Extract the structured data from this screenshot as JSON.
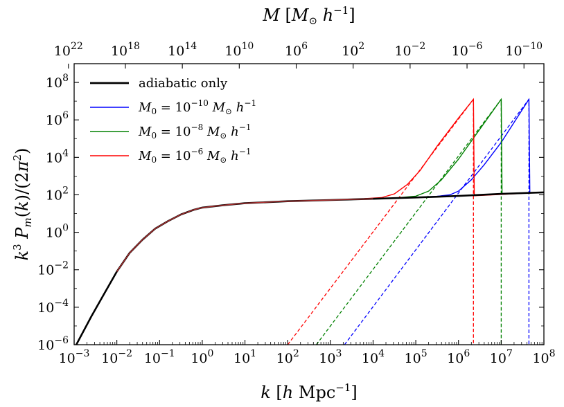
{
  "chart_data": {
    "type": "line",
    "scale": "log-log",
    "xlabel": "k [h Mpc^-1]",
    "ylabel": "k^3 P_m(k)/(2π^2)",
    "top_xlabel": "M [M_⊙ h^-1]",
    "xlim_log10": [
      -3,
      8
    ],
    "ylim_log10": [
      -6,
      9
    ],
    "x_tick_exponents": [
      -3,
      -2,
      -1,
      0,
      1,
      2,
      3,
      4,
      5,
      6,
      7,
      8
    ],
    "y_tick_exponents": [
      -6,
      -4,
      -2,
      0,
      2,
      4,
      6,
      8
    ],
    "top_tick_exponents": [
      22,
      18,
      14,
      10,
      6,
      2,
      -2,
      -6,
      -10
    ],
    "top_axis_relation": "log10 M = 12.6 - 3 * log10 k",
    "legend": {
      "location": "upper-left",
      "entries": [
        {
          "key": "adiabatic",
          "label": "adiabatic only",
          "color": "#000000"
        },
        {
          "key": "m10",
          "label": "M0 = 10^-10 M_⊙ h^-1",
          "color": "#0000ff"
        },
        {
          "key": "m8",
          "label": "M0 = 10^-8 M_⊙ h^-1",
          "color": "#008000"
        },
        {
          "key": "m6",
          "label": "M0 = 10^-6 M_⊙ h^-1",
          "color": "#ff0000"
        }
      ]
    },
    "adiabatic": {
      "name": "adiabatic only",
      "color": "#000000",
      "points_log10": [
        [
          -2.95,
          -6
        ],
        [
          -2.6,
          -4.5
        ],
        [
          -2.3,
          -3.3
        ],
        [
          -2,
          -2.1
        ],
        [
          -1.7,
          -1.1
        ],
        [
          -1.4,
          -0.4
        ],
        [
          -1.1,
          0.2
        ],
        [
          -0.8,
          0.6
        ],
        [
          -0.5,
          0.95
        ],
        [
          -0.2,
          1.2
        ],
        [
          0,
          1.32
        ],
        [
          0.5,
          1.45
        ],
        [
          1,
          1.55
        ],
        [
          2,
          1.66
        ],
        [
          3,
          1.72
        ],
        [
          4,
          1.79
        ],
        [
          5,
          1.86
        ],
        [
          6,
          1.94
        ],
        [
          7,
          2.05
        ],
        [
          8,
          2.13
        ]
      ]
    },
    "isocurvature": [
      {
        "name": "M0 = 10^-10",
        "color": "#0000ff",
        "cutoff_log10k": 7.65,
        "peak_log10y": 7.1,
        "dashed_points_log10": [
          [
            3.33,
            -6
          ],
          [
            7.65,
            7.1
          ]
        ],
        "total_points_log10": [
          [
            4,
            1.8
          ],
          [
            4.5,
            1.82
          ],
          [
            5,
            1.86
          ],
          [
            5.5,
            1.92
          ],
          [
            5.8,
            2.0
          ],
          [
            6,
            2.2
          ],
          [
            6.3,
            2.8
          ],
          [
            6.6,
            3.6
          ],
          [
            7,
            4.8
          ],
          [
            7.65,
            7.1
          ],
          [
            7.67,
            2.1
          ],
          [
            8,
            2.13
          ]
        ]
      },
      {
        "name": "M0 = 10^-8",
        "color": "#008000",
        "cutoff_log10k": 7.0,
        "peak_log10y": 7.1,
        "dashed_points_log10": [
          [
            2.67,
            -6
          ],
          [
            7.0,
            7.1
          ]
        ],
        "total_points_log10": [
          [
            4,
            1.8
          ],
          [
            4.5,
            1.83
          ],
          [
            5,
            1.93
          ],
          [
            5.3,
            2.2
          ],
          [
            5.6,
            2.8
          ],
          [
            6,
            3.9
          ],
          [
            6.5,
            5.5
          ],
          [
            7.0,
            7.1
          ],
          [
            7.02,
            2.05
          ],
          [
            8,
            2.13
          ]
        ]
      },
      {
        "name": "M0 = 10^-6",
        "color": "#ff0000",
        "cutoff_log10k": 6.35,
        "peak_log10y": 7.1,
        "dashed_points_log10": [
          [
            2.0,
            -6
          ],
          [
            6.35,
            7.1
          ]
        ],
        "total_points_log10": [
          [
            3.8,
            1.8
          ],
          [
            4.2,
            1.85
          ],
          [
            4.5,
            2.05
          ],
          [
            4.8,
            2.55
          ],
          [
            5.1,
            3.3
          ],
          [
            5.5,
            4.6
          ],
          [
            6.0,
            6.1
          ],
          [
            6.35,
            7.1
          ],
          [
            6.37,
            1.95
          ],
          [
            8,
            2.13
          ]
        ]
      }
    ]
  }
}
